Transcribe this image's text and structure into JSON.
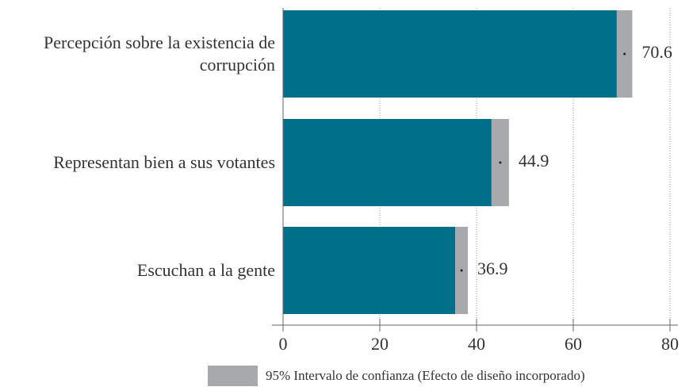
{
  "chart_data": {
    "type": "bar",
    "orientation": "horizontal",
    "categories": [
      "Percepción sobre la existencia de corrupción",
      "Representan bien a sus votantes",
      "Escuchan a la gente"
    ],
    "values": [
      70.6,
      44.9,
      36.9
    ],
    "errors": [
      1.6,
      1.8,
      1.3
    ],
    "color": "#00708a",
    "error_color": "#a7a9ac",
    "xlim": [
      0,
      80
    ],
    "xticks": [
      0,
      20,
      40,
      60,
      80
    ],
    "grid": true,
    "legend": {
      "label": "95% Intervalo de confianza (Efecto de diseño incorporado)",
      "color": "#a7a9ac",
      "position": "bottom"
    }
  }
}
